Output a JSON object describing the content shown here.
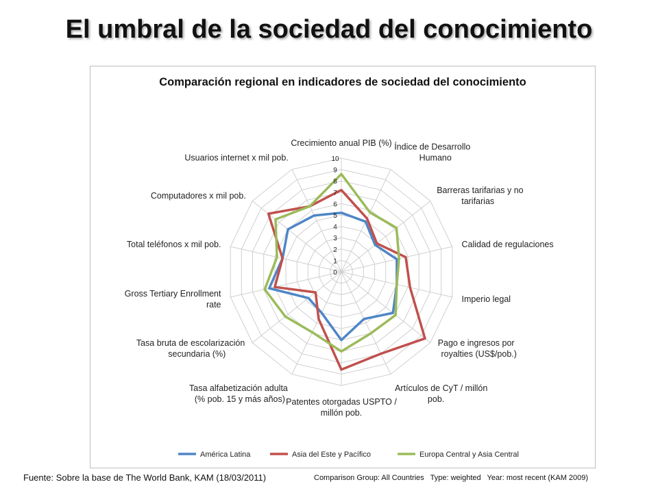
{
  "slide": {
    "title": "El umbral de la sociedad del conocimiento",
    "source": "Fuente: Sobre la base de The World Bank, KAM (18/03/2011)",
    "comparison_group": "Comparison Group: All Countries",
    "type": "Type: weighted",
    "year": "Year: most recent (KAM 2009)"
  },
  "chart_data": {
    "type": "radar",
    "title": "Comparación regional en indicadores de sociedad del conocimiento",
    "categories": [
      "Crecimiento anual PIB (%)",
      "Índice de Desarrollo Humano",
      "Barreras tarifarias y no tarifarias",
      "Calidad de regulaciones",
      "Imperio legal",
      "Pago e ingresos por royalties (US$/pob.)",
      "Artículos de CyT / millón pob.",
      "Patentes otorgadas USPTO / millón pob.",
      "Tasa alfabetización adulta (% pob. 15 y más años)",
      "Tasa bruta de escolarización secundaria (%)",
      "Gross Tertiary Enrollment rate",
      "Total teléfonos x mil pob.",
      "Computadores x mil pob.",
      "Usuarios internet x mil pob."
    ],
    "range": [
      0,
      10
    ],
    "ticks": [
      "0",
      "1",
      "2",
      "3",
      "4",
      "5",
      "6",
      "7",
      "8",
      "9",
      "10"
    ],
    "legend_position": "bottom",
    "series": [
      {
        "name": "América Latina",
        "color": "#4f86c6",
        "values": [
          5.2,
          4.9,
          3.8,
          5.0,
          5.0,
          5.8,
          4.6,
          6.0,
          4.0,
          3.7,
          6.5,
          5.3,
          6.0,
          5.5
        ]
      },
      {
        "name": "Asia del Este y Pacífico",
        "color": "#c0504d",
        "values": [
          7.2,
          5.2,
          4.0,
          5.8,
          6.2,
          9.4,
          8.0,
          8.6,
          4.6,
          2.9,
          6.0,
          5.3,
          8.2,
          6.4
        ]
      },
      {
        "name": "Europa Central y Asia Central",
        "color": "#9bbb59",
        "values": [
          8.6,
          5.8,
          6.2,
          5.2,
          5.0,
          6.1,
          6.0,
          7.0,
          5.9,
          6.3,
          6.9,
          5.8,
          7.4,
          6.4
        ]
      }
    ]
  }
}
